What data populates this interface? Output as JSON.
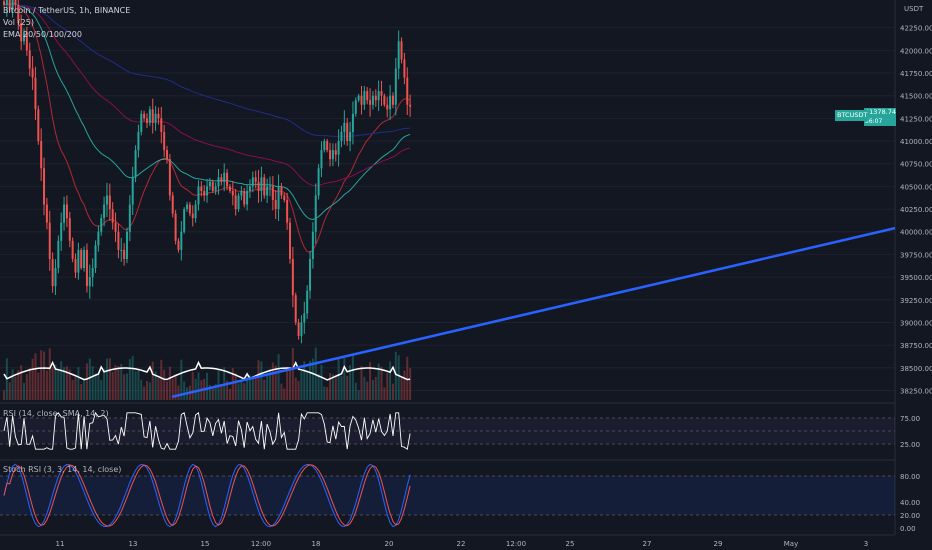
{
  "header": {
    "symbol_line": "Bitcoin / TetherUS, 1h, BINANCE",
    "volume_label": "Vol (25)",
    "ema_label": "EMA 20/50/100/200",
    "currency": "USDT"
  },
  "price_badge": {
    "symbol": "BTCUSDT",
    "price": "41378.74",
    "countdown": "56:07"
  },
  "panes": {
    "rsi_label": "RSI (14, close, SMA, 14, 2)",
    "stoch_label": "Stoch RSI (3, 3, 14, 14, close)"
  },
  "colors": {
    "background": "#131722",
    "up": "#26a69a",
    "down": "#ef5350",
    "trendline": "#2962ff",
    "ema20": "#b22833",
    "ema50": "#26a69a",
    "ema100": "#880e4f",
    "ema200": "#1f2d89",
    "rsi": "#ffffff",
    "stoch_k": "#2962ff",
    "stoch_d": "#ef5350"
  },
  "chart_data": {
    "type": "candlestick",
    "y_ticks": [
      "42250.00",
      "42000.00",
      "41750.00",
      "41500.00",
      "41250.00",
      "41000.00",
      "40750.00",
      "40500.00",
      "40250.00",
      "40000.00",
      "39750.00",
      "39500.00",
      "39250.00",
      "39000.00",
      "38750.00",
      "38500.00",
      "38250.00"
    ],
    "ylim": [
      38200,
      42500
    ],
    "x_ticks": [
      "11",
      "13",
      "15",
      "12:00",
      "18",
      "20",
      "22",
      "12:00",
      "25",
      "27",
      "29",
      "May",
      "3"
    ],
    "rsi_ticks": [
      "75.00",
      "25.00"
    ],
    "stoch_ticks": [
      "80.00",
      "40.00",
      "20.00",
      "0.00"
    ],
    "grid": true,
    "legend": "top-left",
    "trendline": {
      "start_price": 38180,
      "end_price": 40040
    },
    "series": [
      {
        "close": [
          42500,
          42650,
          42450,
          42600,
          42500,
          42300,
          42100,
          42200,
          42000,
          41800,
          41700,
          41350,
          41000,
          40700,
          40300,
          40100,
          39700,
          39400,
          39600,
          39900,
          40100,
          40300,
          40150,
          39900,
          39700,
          39550,
          39800,
          39600,
          39800,
          39400,
          39500,
          39600,
          39850,
          40000,
          40150,
          40300,
          40400,
          40250,
          40100,
          40000,
          39800,
          39800,
          39700,
          40000,
          40300,
          40600,
          40900,
          41100,
          41300,
          41250,
          41200,
          41350,
          41200,
          41300,
          41250,
          41100,
          40900,
          40800,
          40400,
          40200,
          39900,
          39800,
          40000,
          40250,
          40300,
          40200,
          40150,
          40300,
          40500,
          40450,
          40400,
          40500,
          40550,
          40450,
          40500,
          40600,
          40550,
          40650,
          40500,
          40450,
          40400,
          40250,
          40400,
          40450,
          40300,
          40450,
          40500,
          40600,
          40550,
          40450,
          40600,
          40400,
          40500,
          40500,
          40350,
          40250,
          40500,
          40400,
          40350,
          40100,
          39700,
          39300,
          39000,
          38850,
          39000,
          39100,
          39350,
          39700,
          40000,
          40400,
          40700,
          40900,
          41000,
          40900,
          40800,
          40900,
          40850,
          41000,
          41100,
          41200,
          41000,
          41100,
          41300,
          41450,
          41500,
          41400,
          41550,
          41450,
          41400,
          41500,
          41450,
          41550,
          41500,
          41400,
          41350,
          41500,
          41400,
          41800,
          42100,
          41900,
          41700,
          41400,
          41378.74
        ]
      }
    ]
  }
}
